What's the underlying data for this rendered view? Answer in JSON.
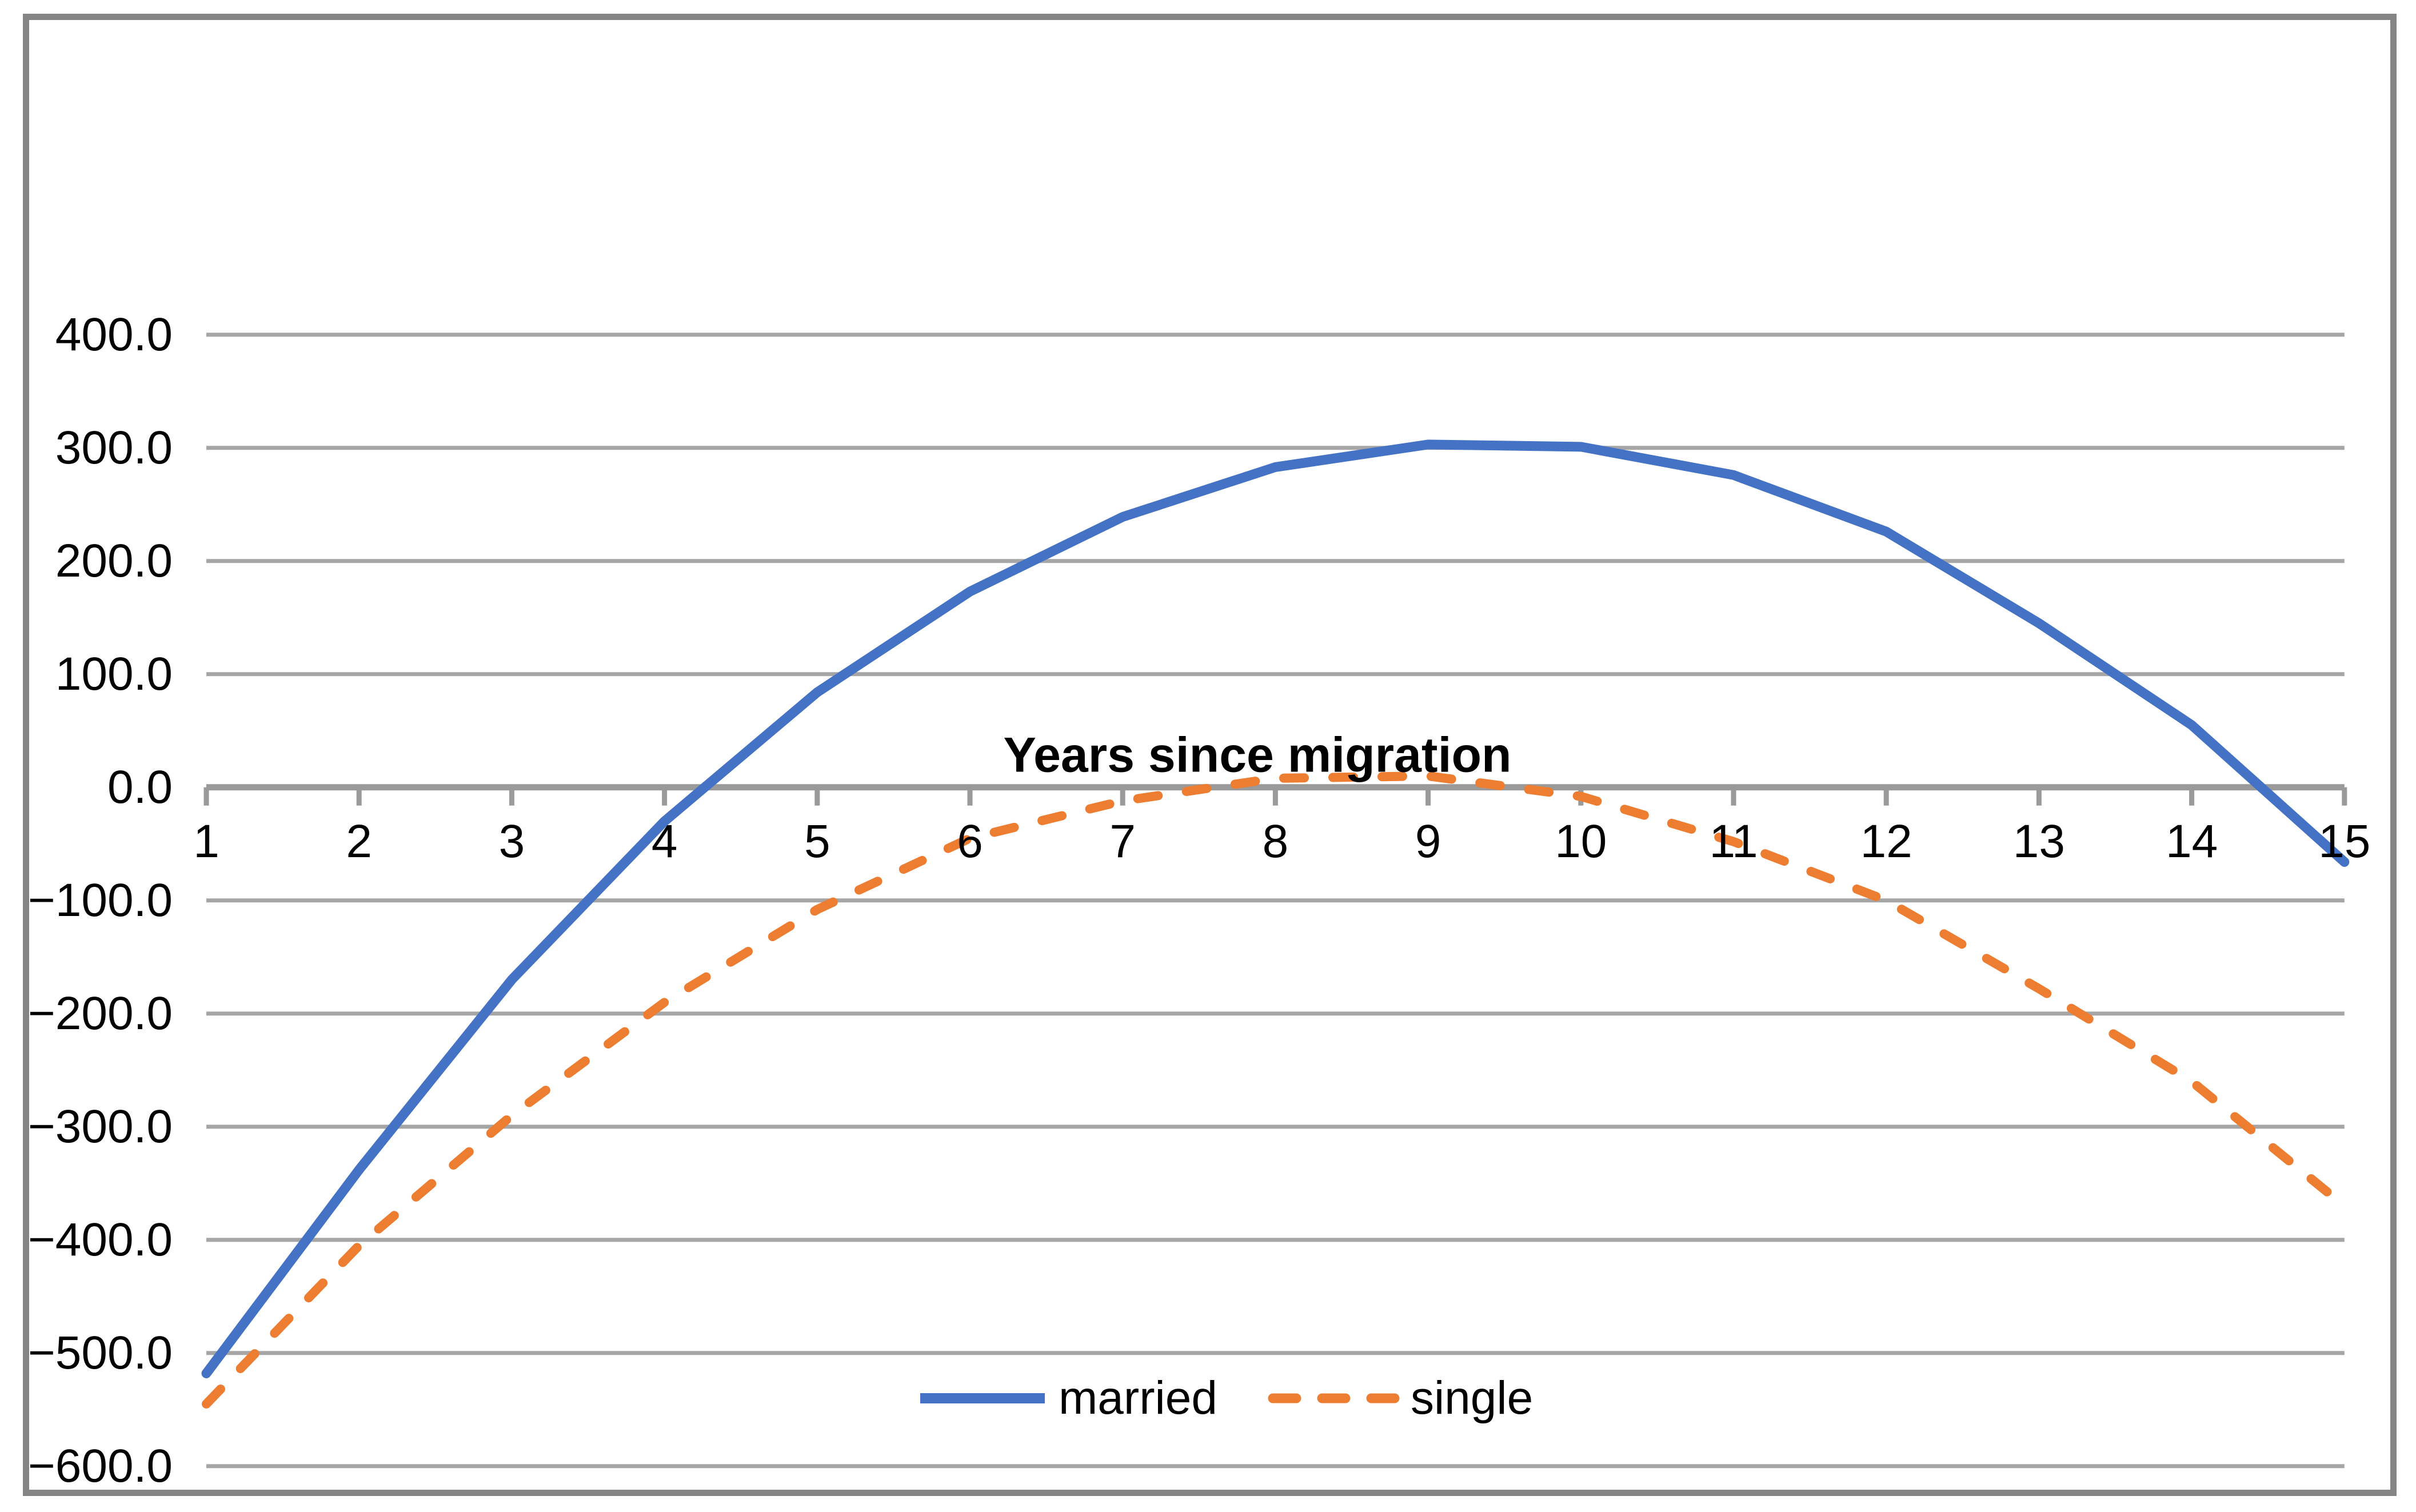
{
  "chart_data": {
    "type": "line",
    "title": "",
    "xlabel": "Years since migration",
    "ylabel": "",
    "x": [
      1,
      2,
      3,
      4,
      5,
      6,
      7,
      8,
      9,
      10,
      11,
      12,
      13,
      14,
      15
    ],
    "x_tick_labels": [
      "1",
      "2",
      "3",
      "4",
      "5",
      "6",
      "7",
      "8",
      "9",
      "10",
      "11",
      "12",
      "13",
      "14",
      "15"
    ],
    "y_ticks": [
      400,
      300,
      200,
      100,
      0,
      -100,
      -200,
      -300,
      -400,
      -500,
      -600
    ],
    "y_tick_labels": [
      "400.0",
      "300.0",
      "200.0",
      "100.0",
      "0.0",
      "−100.0",
      "−200.0",
      "−300.0",
      "−400.0",
      "−500.0",
      "−600.0"
    ],
    "xlim": [
      1,
      15
    ],
    "ylim": [
      -600,
      400
    ],
    "grid": "horizontal",
    "legend_position": "bottom-center-inside",
    "series": [
      {
        "name": "married",
        "style": "solid",
        "color": "#4472C4",
        "values": [
          -518,
          -338,
          -170,
          -30,
          84,
          173,
          239,
          283,
          303,
          301,
          276,
          226,
          145,
          55,
          -66
        ]
      },
      {
        "name": "single",
        "style": "dashed",
        "color": "#ED7D31",
        "values": [
          -545,
          -405,
          -290,
          -190,
          -108,
          -45,
          -12,
          8,
          10,
          -8,
          -48,
          -100,
          -178,
          -260,
          -370
        ]
      }
    ]
  },
  "colors": {
    "background": "#FFFFFF",
    "border": "#848484",
    "gridline": "#A6A6A6",
    "axis_line": "#9A9A9A",
    "text": "#000000",
    "series_married": "#4472C4",
    "series_single": "#ED7D31"
  }
}
